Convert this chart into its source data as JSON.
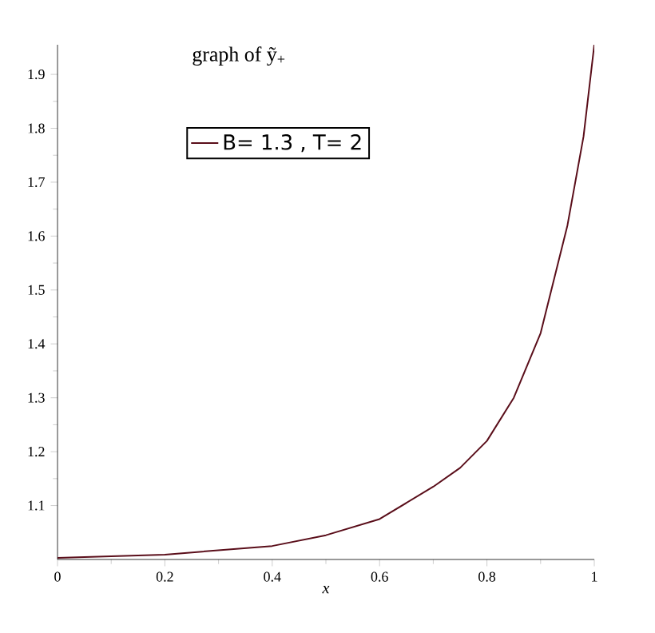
{
  "chart_data": {
    "type": "line",
    "title": "graph of ỹ$_{+}$",
    "xlabel": "x",
    "legend": "top left",
    "xlim": [
      0,
      1
    ],
    "ylim": [
      1.0,
      1.955
    ],
    "xticks": [
      0,
      0.2,
      0.4,
      0.6,
      0.8,
      1
    ],
    "yticks": [
      1.1,
      1.2,
      1.3,
      1.4,
      1.5,
      1.6,
      1.7,
      1.8,
      1.9
    ],
    "grid": false,
    "series": [
      {
        "name": "B= 1.3 , T= 2",
        "color": "#5a0e1a",
        "x": [
          0,
          0.2,
          0.4,
          0.5,
          0.6,
          0.7,
          0.75,
          0.8,
          0.85,
          0.9,
          0.95,
          0.98,
          1.0
        ],
        "values": [
          1.003,
          1.009,
          1.025,
          1.045,
          1.075,
          1.135,
          1.17,
          1.22,
          1.3,
          1.42,
          1.62,
          1.785,
          1.955
        ]
      }
    ]
  }
}
